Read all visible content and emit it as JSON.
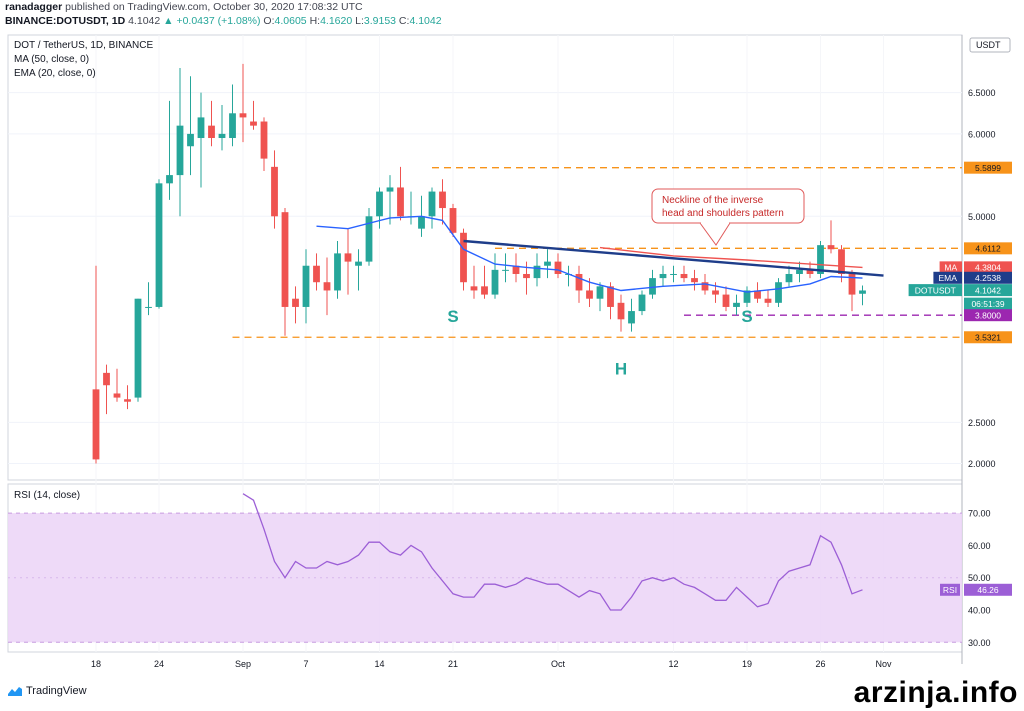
{
  "header": {
    "publisher": "ranadagger",
    "published_text": "published on TradingView.com, October 30, 2020 17:08:32 UTC",
    "symbol_line": "BINANCE:DOTUSDT, 1D",
    "last": "4.1042",
    "change": "▲ +0.0437 (+1.08%)",
    "o": "4.0605",
    "h": "4.1620",
    "l": "3.9153",
    "c": "4.1042"
  },
  "legend": {
    "title": "DOT / TetherUS, 1D, BINANCE",
    "ma": "MA (50, close, 0)",
    "ema": "EMA (20, close, 0)",
    "rsi": "RSI (14, close)"
  },
  "price_axis": {
    "unit": "USDT",
    "ticks": [
      "6.5000",
      "6.0000",
      "5.0000",
      "2.5000",
      "2.0000"
    ],
    "min": 1.8,
    "max": 7.2
  },
  "rsi_axis": {
    "ticks": [
      "70.00",
      "60.00",
      "50.00",
      "40.00",
      "30.00"
    ],
    "min": 27,
    "max": 79
  },
  "x_axis": {
    "labels": [
      {
        "i": 0,
        "t": "18"
      },
      {
        "i": 6,
        "t": "24"
      },
      {
        "i": 14,
        "t": "Sep"
      },
      {
        "i": 20,
        "t": "7"
      },
      {
        "i": 27,
        "t": "14"
      },
      {
        "i": 34,
        "t": "21"
      },
      {
        "i": 44,
        "t": "Oct"
      },
      {
        "i": 55,
        "t": "12"
      },
      {
        "i": 62,
        "t": "19"
      },
      {
        "i": 69,
        "t": "26"
      },
      {
        "i": 75,
        "t": "Nov"
      }
    ],
    "total_bars": 80
  },
  "price_tags": [
    {
      "label": "",
      "value": "5.5899",
      "price": 5.5899,
      "color": "#f7931a",
      "text": "#131722"
    },
    {
      "label": "",
      "value": "4.6112",
      "price": 4.6112,
      "color": "#f7931a",
      "text": "#131722"
    },
    {
      "label": "MA",
      "value": "4.3804",
      "price": 4.3804,
      "color": "#ef5350",
      "text": "#ffffff"
    },
    {
      "label": "EMA",
      "value": "4.2538",
      "price": 4.2538,
      "color": "#1e3d8a",
      "text": "#ffffff"
    },
    {
      "label": "DOTUSDT",
      "value": "4.1042",
      "price": 4.1042,
      "color": "#26a69a",
      "text": "#ffffff"
    },
    {
      "label": "",
      "value": "06:51:39",
      "price": 3.94,
      "color": "#26a69a",
      "text": "#ffffff"
    },
    {
      "label": "",
      "value": "3.8000",
      "price": 3.8,
      "color": "#9c27b0",
      "text": "#ffffff"
    },
    {
      "label": "",
      "value": "3.5321",
      "price": 3.5321,
      "color": "#f7931a",
      "text": "#131722"
    }
  ],
  "rsi_tag": {
    "label": "RSI",
    "value": "46.26",
    "value_num": 46.26
  },
  "annotations": {
    "callout": "Neckline of the inverse head and shoulders pattern",
    "left_shoulder": "S",
    "head": "H",
    "right_shoulder": "S"
  },
  "colors": {
    "up": "#26a69a",
    "down": "#ef5350",
    "ma": "#ef5350",
    "ema": "#2962ff",
    "neckline": "#1e3d8a",
    "support": "#f7931a",
    "purple_level": "#9c27b0",
    "rsi_line": "#9c5fd6",
    "rsi_band": "#ecd6f7",
    "callout_border": "#e05a5a",
    "pattern_label": "#26a69a"
  },
  "chart_data": {
    "type": "candlestick",
    "symbol": "BINANCE:DOTUSDT",
    "interval": "1D",
    "ohlc": [
      [
        2.9,
        4.4,
        2.0,
        2.05
      ],
      [
        3.1,
        3.2,
        2.6,
        2.95
      ],
      [
        2.85,
        3.15,
        2.75,
        2.8
      ],
      [
        2.78,
        2.95,
        2.66,
        2.75
      ],
      [
        2.8,
        4.0,
        2.75,
        4.0
      ],
      [
        3.9,
        4.2,
        3.8,
        3.9
      ],
      [
        3.9,
        5.45,
        3.88,
        5.4
      ],
      [
        5.4,
        6.4,
        5.2,
        5.5
      ],
      [
        5.5,
        6.8,
        5.0,
        6.1
      ],
      [
        5.85,
        6.7,
        5.5,
        6.0
      ],
      [
        5.95,
        6.5,
        5.35,
        6.2
      ],
      [
        6.1,
        6.4,
        5.85,
        5.95
      ],
      [
        5.95,
        6.35,
        5.8,
        6.0
      ],
      [
        5.95,
        6.6,
        5.85,
        6.25
      ],
      [
        6.25,
        6.85,
        5.9,
        6.2
      ],
      [
        6.15,
        6.4,
        6.05,
        6.1
      ],
      [
        6.15,
        6.2,
        5.55,
        5.7
      ],
      [
        5.6,
        5.8,
        4.85,
        5.0
      ],
      [
        5.05,
        5.1,
        3.55,
        3.9
      ],
      [
        4.0,
        4.15,
        3.7,
        3.9
      ],
      [
        3.9,
        4.6,
        3.7,
        4.4
      ],
      [
        4.4,
        4.55,
        4.1,
        4.2
      ],
      [
        4.2,
        4.5,
        3.8,
        4.1
      ],
      [
        4.1,
        4.7,
        4.0,
        4.55
      ],
      [
        4.55,
        4.85,
        4.05,
        4.45
      ],
      [
        4.4,
        4.6,
        4.1,
        4.45
      ],
      [
        4.45,
        5.1,
        4.4,
        5.0
      ],
      [
        5.0,
        5.35,
        4.85,
        5.3
      ],
      [
        5.3,
        5.5,
        4.9,
        5.35
      ],
      [
        5.35,
        5.6,
        4.95,
        5.0
      ],
      [
        5.0,
        5.3,
        4.9,
        5.0
      ],
      [
        4.85,
        5.25,
        4.75,
        5.0
      ],
      [
        5.0,
        5.35,
        4.85,
        5.3
      ],
      [
        5.3,
        5.45,
        4.9,
        5.1
      ],
      [
        5.1,
        5.15,
        4.75,
        4.8
      ],
      [
        4.8,
        4.85,
        4.1,
        4.2
      ],
      [
        4.15,
        4.4,
        4.0,
        4.1
      ],
      [
        4.15,
        4.4,
        4.0,
        4.05
      ],
      [
        4.05,
        4.55,
        4.0,
        4.35
      ],
      [
        4.35,
        4.55,
        4.2,
        4.35
      ],
      [
        4.4,
        4.55,
        4.2,
        4.3
      ],
      [
        4.3,
        4.45,
        4.05,
        4.25
      ],
      [
        4.25,
        4.55,
        4.15,
        4.4
      ],
      [
        4.4,
        4.6,
        4.25,
        4.45
      ],
      [
        4.45,
        4.55,
        4.25,
        4.3
      ],
      [
        4.3,
        4.4,
        4.15,
        4.3
      ],
      [
        4.3,
        4.4,
        3.95,
        4.1
      ],
      [
        4.1,
        4.25,
        3.9,
        4.0
      ],
      [
        4.0,
        4.2,
        3.85,
        4.15
      ],
      [
        4.15,
        4.2,
        3.75,
        3.9
      ],
      [
        3.95,
        4.05,
        3.6,
        3.75
      ],
      [
        3.7,
        4.0,
        3.6,
        3.85
      ],
      [
        3.85,
        4.1,
        3.8,
        4.05
      ],
      [
        4.05,
        4.35,
        4.0,
        4.25
      ],
      [
        4.25,
        4.4,
        4.15,
        4.3
      ],
      [
        4.3,
        4.4,
        4.2,
        4.3
      ],
      [
        4.3,
        4.4,
        4.2,
        4.25
      ],
      [
        4.25,
        4.35,
        4.1,
        4.2
      ],
      [
        4.2,
        4.3,
        4.05,
        4.1
      ],
      [
        4.1,
        4.2,
        3.95,
        4.05
      ],
      [
        4.05,
        4.15,
        3.85,
        3.9
      ],
      [
        3.9,
        4.05,
        3.8,
        3.95
      ],
      [
        3.95,
        4.15,
        3.9,
        4.1
      ],
      [
        4.1,
        4.2,
        3.95,
        4.0
      ],
      [
        4.0,
        4.1,
        3.9,
        3.95
      ],
      [
        3.95,
        4.25,
        3.9,
        4.2
      ],
      [
        4.2,
        4.4,
        4.15,
        4.3
      ],
      [
        4.3,
        4.45,
        4.2,
        4.35
      ],
      [
        4.35,
        4.45,
        4.25,
        4.3
      ],
      [
        4.3,
        4.7,
        4.25,
        4.65
      ],
      [
        4.65,
        4.95,
        4.55,
        4.6
      ],
      [
        4.6,
        4.65,
        4.2,
        4.3
      ],
      [
        4.3,
        4.35,
        3.85,
        4.05
      ],
      [
        4.06,
        4.16,
        3.92,
        4.1
      ]
    ],
    "ma50": [
      [
        48,
        4.62
      ],
      [
        55,
        4.52
      ],
      [
        62,
        4.47
      ],
      [
        68,
        4.42
      ],
      [
        73,
        4.38
      ]
    ],
    "ema20": [
      [
        21,
        4.88
      ],
      [
        24,
        4.85
      ],
      [
        28,
        4.98
      ],
      [
        31,
        5.0
      ],
      [
        33,
        4.95
      ],
      [
        35,
        4.6
      ],
      [
        38,
        4.42
      ],
      [
        41,
        4.38
      ],
      [
        44,
        4.35
      ],
      [
        47,
        4.2
      ],
      [
        50,
        4.1
      ],
      [
        54,
        4.15
      ],
      [
        58,
        4.18
      ],
      [
        62,
        4.08
      ],
      [
        65,
        4.12
      ],
      [
        68,
        4.18
      ],
      [
        70,
        4.27
      ],
      [
        73,
        4.25
      ]
    ],
    "neckline": [
      [
        35,
        4.7
      ],
      [
        75,
        4.28
      ]
    ],
    "levels": [
      {
        "price": 5.5899,
        "from": 32,
        "to": 78
      },
      {
        "price": 4.6112,
        "from": 38,
        "to": 78
      },
      {
        "price": 3.5321,
        "from": 13,
        "to": 78
      },
      {
        "price": 3.8,
        "from": 56,
        "to": 78
      }
    ],
    "rsi": [
      [
        14,
        76
      ],
      [
        15,
        74
      ],
      [
        16,
        65
      ],
      [
        17,
        55
      ],
      [
        18,
        50
      ],
      [
        19,
        55
      ],
      [
        20,
        53
      ],
      [
        21,
        53
      ],
      [
        22,
        55
      ],
      [
        23,
        54
      ],
      [
        24,
        55
      ],
      [
        25,
        57
      ],
      [
        26,
        61
      ],
      [
        27,
        61
      ],
      [
        28,
        58
      ],
      [
        29,
        57
      ],
      [
        30,
        60
      ],
      [
        31,
        58
      ],
      [
        32,
        53
      ],
      [
        33,
        49
      ],
      [
        34,
        45
      ],
      [
        35,
        44
      ],
      [
        36,
        44
      ],
      [
        37,
        48
      ],
      [
        38,
        48
      ],
      [
        39,
        47
      ],
      [
        40,
        48
      ],
      [
        41,
        50
      ],
      [
        42,
        49
      ],
      [
        43,
        48
      ],
      [
        44,
        48
      ],
      [
        45,
        46
      ],
      [
        46,
        44
      ],
      [
        47,
        46
      ],
      [
        48,
        45
      ],
      [
        49,
        40
      ],
      [
        50,
        40
      ],
      [
        51,
        44
      ],
      [
        52,
        49
      ],
      [
        53,
        50
      ],
      [
        54,
        49
      ],
      [
        55,
        50
      ],
      [
        56,
        48
      ],
      [
        57,
        47
      ],
      [
        58,
        45
      ],
      [
        59,
        43
      ],
      [
        60,
        43
      ],
      [
        61,
        47
      ],
      [
        62,
        44
      ],
      [
        63,
        41
      ],
      [
        64,
        42
      ],
      [
        65,
        49
      ],
      [
        66,
        52
      ],
      [
        67,
        53
      ],
      [
        68,
        54
      ],
      [
        69,
        63
      ],
      [
        70,
        61
      ],
      [
        71,
        54
      ],
      [
        72,
        45
      ],
      [
        73,
        46.26
      ]
    ],
    "rsi_band": [
      30,
      70
    ]
  }
}
